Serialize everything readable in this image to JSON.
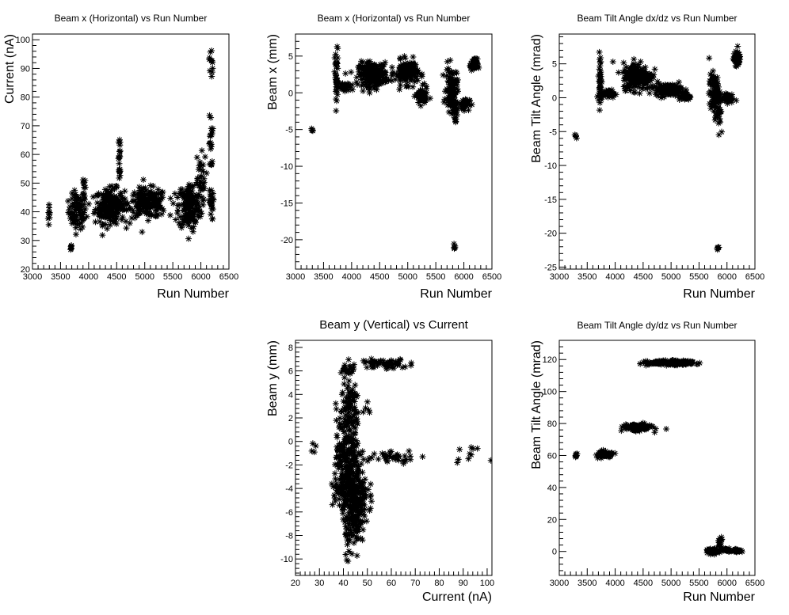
{
  "chart_data": [
    {
      "id": "p1",
      "type": "scatter",
      "title": "Beam x (Horizontal) vs Run Number",
      "xlabel": "Run Number",
      "ylabel": "Current (nA)",
      "xlim": [
        3000,
        6500
      ],
      "ylim": [
        20,
        102
      ],
      "xticks": [
        3000,
        3500,
        4000,
        4500,
        5000,
        5500,
        6000,
        6500
      ],
      "yticks": [
        20,
        30,
        40,
        50,
        60,
        70,
        80,
        90,
        100
      ],
      "marker": "star",
      "clusters": [
        {
          "x": 3300,
          "y": 39,
          "sx": 10,
          "sy": 2.5,
          "n": 10
        },
        {
          "x": 3680,
          "y": 27.5,
          "sx": 10,
          "sy": 0.6,
          "n": 6
        },
        {
          "x": 3800,
          "y": 40,
          "sx": 80,
          "sy": 3,
          "n": 90
        },
        {
          "x": 3920,
          "y": 49,
          "sx": 12,
          "sy": 2,
          "n": 10
        },
        {
          "x": 4380,
          "y": 42,
          "sx": 130,
          "sy": 3,
          "n": 220
        },
        {
          "x": 4550,
          "y": 61,
          "sx": 10,
          "sy": 4,
          "n": 12
        },
        {
          "x": 4550,
          "y": 54,
          "sx": 10,
          "sy": 2,
          "n": 8
        },
        {
          "x": 5050,
          "y": 43,
          "sx": 170,
          "sy": 2.5,
          "n": 200
        },
        {
          "x": 5800,
          "y": 42,
          "sx": 100,
          "sy": 4,
          "n": 180
        },
        {
          "x": 5980,
          "y": 52,
          "sx": 60,
          "sy": 4,
          "n": 30
        },
        {
          "x": 6180,
          "y": 43,
          "sx": 20,
          "sy": 3,
          "n": 25
        },
        {
          "x": 6180,
          "y": 64,
          "sx": 15,
          "sy": 5,
          "n": 20
        },
        {
          "x": 6180,
          "y": 92,
          "sx": 15,
          "sy": 3,
          "n": 12
        }
      ]
    },
    {
      "id": "p2",
      "type": "scatter",
      "title": "Beam x (Horizontal) vs Run Number",
      "xlabel": "Run Number",
      "ylabel": "Beam x (mm)",
      "xlim": [
        3000,
        6500
      ],
      "ylim": [
        -24,
        8
      ],
      "xticks": [
        3000,
        3500,
        4000,
        4500,
        5000,
        5500,
        6000,
        6500
      ],
      "yticks": [
        -20,
        -15,
        -10,
        -5,
        0,
        5
      ],
      "marker": "star",
      "clusters": [
        {
          "x": 3300,
          "y": -5,
          "sx": 8,
          "sy": 0.2,
          "n": 4
        },
        {
          "x": 3730,
          "y": 2,
          "sx": 15,
          "sy": 2,
          "n": 40
        },
        {
          "x": 3880,
          "y": 0.7,
          "sx": 60,
          "sy": 0.3,
          "n": 40
        },
        {
          "x": 4380,
          "y": 2.5,
          "sx": 130,
          "sy": 0.8,
          "n": 220
        },
        {
          "x": 4980,
          "y": 2.8,
          "sx": 100,
          "sy": 0.8,
          "n": 150
        },
        {
          "x": 5250,
          "y": -0.5,
          "sx": 50,
          "sy": 0.6,
          "n": 70
        },
        {
          "x": 5780,
          "y": 0.5,
          "sx": 50,
          "sy": 1.5,
          "n": 100
        },
        {
          "x": 5850,
          "y": -2.5,
          "sx": 20,
          "sy": 1,
          "n": 20
        },
        {
          "x": 5830,
          "y": -21,
          "sx": 10,
          "sy": 0.3,
          "n": 5
        },
        {
          "x": 6000,
          "y": -1.5,
          "sx": 50,
          "sy": 0.4,
          "n": 40
        },
        {
          "x": 6180,
          "y": 3.8,
          "sx": 30,
          "sy": 0.4,
          "n": 60
        }
      ]
    },
    {
      "id": "p3",
      "type": "scatter",
      "title": "Beam Tilt Angle dx/dz vs Run Number",
      "xlabel": "Run Number",
      "ylabel": "Beam Tilt Angle (mrad)",
      "xlim": [
        3000,
        6500
      ],
      "ylim": [
        -25.3,
        9.4
      ],
      "xticks": [
        3000,
        3500,
        4000,
        4500,
        5000,
        5500,
        6000,
        6500
      ],
      "yticks": [
        -25,
        -20,
        -15,
        -10,
        -5,
        0,
        5
      ],
      "marker": "star",
      "clusters": [
        {
          "x": 3300,
          "y": -5.8,
          "sx": 8,
          "sy": 0.2,
          "n": 4
        },
        {
          "x": 3730,
          "y": 2.5,
          "sx": 15,
          "sy": 2,
          "n": 40
        },
        {
          "x": 3880,
          "y": 0.6,
          "sx": 60,
          "sy": 0.3,
          "n": 40
        },
        {
          "x": 4400,
          "y": 3.2,
          "sx": 130,
          "sy": 1,
          "n": 220
        },
        {
          "x": 4950,
          "y": 1.2,
          "sx": 120,
          "sy": 0.4,
          "n": 150
        },
        {
          "x": 5250,
          "y": 0.2,
          "sx": 50,
          "sy": 0.3,
          "n": 40
        },
        {
          "x": 5780,
          "y": 0.5,
          "sx": 50,
          "sy": 1.5,
          "n": 100
        },
        {
          "x": 5860,
          "y": -2.5,
          "sx": 20,
          "sy": 1,
          "n": 20
        },
        {
          "x": 5830,
          "y": -22.3,
          "sx": 10,
          "sy": 0.3,
          "n": 5
        },
        {
          "x": 6000,
          "y": 0,
          "sx": 50,
          "sy": 0.4,
          "n": 40
        },
        {
          "x": 6180,
          "y": 5.8,
          "sx": 30,
          "sy": 0.5,
          "n": 60
        }
      ]
    },
    {
      "id": "p4",
      "type": "scatter",
      "title": "Beam y (Vertical) vs Current",
      "xlabel": "Current (nA)",
      "ylabel": "Beam y (mm)",
      "xlim": [
        20,
        102
      ],
      "ylim": [
        -11.4,
        8.6
      ],
      "xticks": [
        20,
        30,
        40,
        50,
        60,
        70,
        80,
        90,
        100
      ],
      "yticks": [
        -10,
        -8,
        -6,
        -4,
        -2,
        0,
        2,
        4,
        6,
        8
      ],
      "marker": "star",
      "clusters": [
        {
          "x": 42,
          "y": -1,
          "sx": 2.5,
          "sy": 2,
          "n": 250
        },
        {
          "x": 44,
          "y": -4.5,
          "sx": 3,
          "sy": 1,
          "n": 200
        },
        {
          "x": 45,
          "y": -7,
          "sx": 2,
          "sy": 1,
          "n": 100
        },
        {
          "x": 43,
          "y": 3,
          "sx": 2,
          "sy": 1.2,
          "n": 60
        },
        {
          "x": 42,
          "y": 6,
          "sx": 2,
          "sy": 0.3,
          "n": 20
        },
        {
          "x": 57,
          "y": 6.6,
          "sx": 5,
          "sy": 0.2,
          "n": 60
        },
        {
          "x": 60,
          "y": -1.2,
          "sx": 7,
          "sy": 0.3,
          "n": 40
        },
        {
          "x": 27,
          "y": -0.5,
          "sx": 0.5,
          "sy": 0.2,
          "n": 4
        },
        {
          "x": 37,
          "y": -4,
          "sx": 1,
          "sy": 0.5,
          "n": 15
        },
        {
          "x": 41,
          "y": -10,
          "sx": 0.4,
          "sy": 0.2,
          "n": 3
        },
        {
          "x": 92,
          "y": -1.1,
          "sx": 3,
          "sy": 0.3,
          "n": 10
        },
        {
          "x": 50,
          "y": 2.8,
          "sx": 1.5,
          "sy": 0.3,
          "n": 5
        }
      ]
    },
    {
      "id": "p5",
      "type": "scatter",
      "title": "Beam Tilt Angle dy/dz vs Run Number",
      "xlabel": "Run Number",
      "ylabel": "Beam Tilt Angle (mrad)",
      "xlim": [
        3000,
        6500
      ],
      "ylim": [
        -15,
        132
      ],
      "xticks": [
        3000,
        3500,
        4000,
        4500,
        5000,
        5500,
        6000,
        6500
      ],
      "yticks": [
        0,
        20,
        40,
        60,
        80,
        100,
        120
      ],
      "marker": "star",
      "clusters": [
        {
          "x": 3300,
          "y": 60,
          "sx": 8,
          "sy": 0.5,
          "n": 8
        },
        {
          "x": 3760,
          "y": 60.5,
          "sx": 35,
          "sy": 1.2,
          "n": 40
        },
        {
          "x": 3880,
          "y": 60.5,
          "sx": 50,
          "sy": 0.6,
          "n": 40
        },
        {
          "x": 4400,
          "y": 77.5,
          "sx": 120,
          "sy": 1,
          "n": 150
        },
        {
          "x": 5000,
          "y": 118,
          "sx": 200,
          "sy": 0.6,
          "n": 250
        },
        {
          "x": 5750,
          "y": 0,
          "sx": 50,
          "sy": 0.8,
          "n": 60
        },
        {
          "x": 5880,
          "y": 5,
          "sx": 20,
          "sy": 2,
          "n": 20
        },
        {
          "x": 6000,
          "y": 1,
          "sx": 40,
          "sy": 0.5,
          "n": 30
        },
        {
          "x": 6180,
          "y": 0.5,
          "sx": 40,
          "sy": 0.5,
          "n": 30
        }
      ]
    }
  ]
}
